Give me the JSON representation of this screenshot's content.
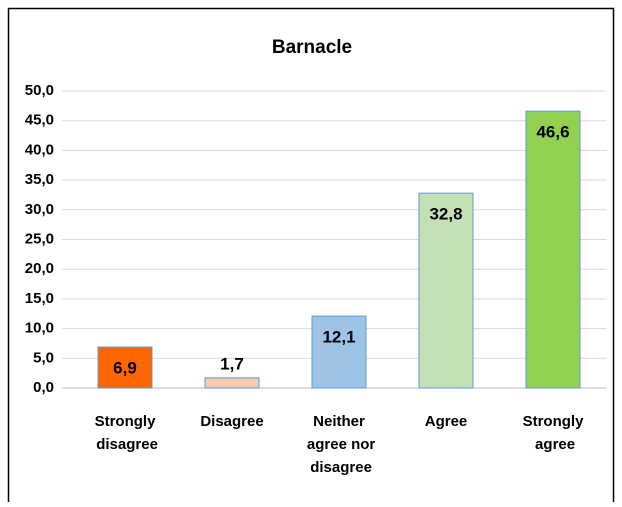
{
  "chart_data": {
    "type": "bar",
    "title": "Barnacle",
    "categories": [
      "Strongly disagree",
      "Disagree",
      "Neither agree nor disagree",
      "Agree",
      "Strongly agree"
    ],
    "values": [
      6.9,
      1.7,
      12.1,
      32.8,
      46.6
    ],
    "value_labels": [
      "6,9",
      "1,7",
      "12,1",
      "32,8",
      "46,6"
    ],
    "colors": [
      "#ff6600",
      "#f8cbad",
      "#9dc3e6",
      "#c5e0b4",
      "#92d050"
    ],
    "ylim": [
      0,
      50
    ],
    "yticks": [
      {
        "value": 0,
        "label": "0,0"
      },
      {
        "value": 5,
        "label": "5,0"
      },
      {
        "value": 10,
        "label": "10,0"
      },
      {
        "value": 15,
        "label": "15,0"
      },
      {
        "value": 20,
        "label": "20,0"
      },
      {
        "value": 25,
        "label": "25,0"
      },
      {
        "value": 30,
        "label": "30,0"
      },
      {
        "value": 35,
        "label": "35,0"
      },
      {
        "value": 40,
        "label": "40,0"
      },
      {
        "value": 45,
        "label": "45,0"
      },
      {
        "value": 50,
        "label": "50,0"
      }
    ],
    "grid": true
  }
}
